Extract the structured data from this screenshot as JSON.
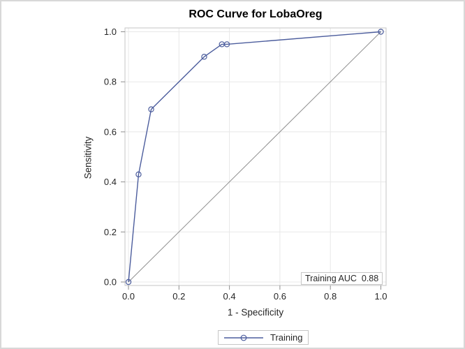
{
  "figure": {
    "background": "#ffffff",
    "border_color": "#d8d8d8"
  },
  "chart_data": {
    "type": "line",
    "title": "ROC Curve for LobaOreg",
    "xlabel": "1 - Specificity",
    "ylabel": "Sensitivity",
    "xlim": [
      0,
      1
    ],
    "ylim": [
      0,
      1
    ],
    "grid": true,
    "xticks": [
      0.0,
      0.2,
      0.4,
      0.6,
      0.8,
      1.0
    ],
    "yticks": [
      0.0,
      0.2,
      0.4,
      0.6,
      0.8,
      1.0
    ],
    "xtick_labels": [
      "0.0",
      "0.2",
      "0.4",
      "0.6",
      "0.8",
      "1.0"
    ],
    "ytick_labels": [
      "0.0",
      "0.2",
      "0.4",
      "0.6",
      "0.8",
      "1.0"
    ],
    "series": [
      {
        "name": "Training",
        "marker": "open-circle",
        "color": "#4c5d9d",
        "points": [
          [
            0.0,
            0.0
          ],
          [
            0.04,
            0.43
          ],
          [
            0.09,
            0.69
          ],
          [
            0.3,
            0.9
          ],
          [
            0.37,
            0.95
          ],
          [
            0.39,
            0.95
          ],
          [
            1.0,
            1.0
          ]
        ]
      }
    ],
    "reference_line": {
      "from": [
        0,
        0
      ],
      "to": [
        1,
        1
      ],
      "color": "#8f8f8f"
    },
    "annotation": {
      "label": "Training AUC",
      "value": "0.88"
    },
    "legend": {
      "position": "bottom-center",
      "items": [
        {
          "label": "Training",
          "color": "#4c5d9d",
          "marker": "open-circle"
        }
      ]
    },
    "colors": {
      "grid": "#e8e8e8",
      "frame": "#c5c5c5",
      "tick": "#8e8e8e",
      "text": "#262626"
    }
  }
}
